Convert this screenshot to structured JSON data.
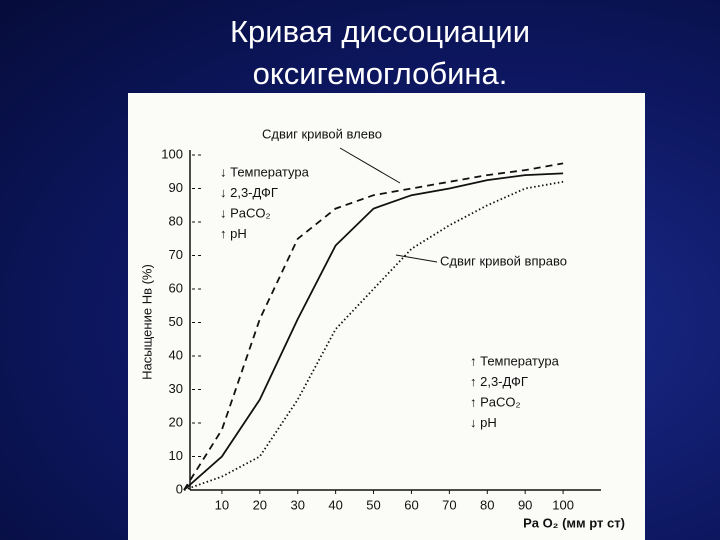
{
  "slide_title": [
    "Кривая диссоциации",
    "оксигемоглобина."
  ],
  "chart_data": {
    "type": "line",
    "ylabel": "Насыщение Нв (%)",
    "xlabel": "Pa O₂ (мм рт ст)",
    "x": [
      0,
      10,
      20,
      30,
      40,
      50,
      60,
      70,
      80,
      90,
      100
    ],
    "series": [
      {
        "name": "Сдвиг кривой влево",
        "color": "#111111",
        "style": "dashed",
        "values": [
          0,
          18,
          51,
          75,
          84,
          88,
          90,
          92,
          94,
          95.5,
          97.5
        ]
      },
      {
        "color": "#111111",
        "style": "solid",
        "values": [
          0,
          10,
          27,
          51,
          73,
          84,
          88,
          90,
          92.5,
          94,
          94.5
        ]
      },
      {
        "name": "Сдвиг кривой вправо",
        "color": "#111111",
        "style": "dotted",
        "values": [
          0,
          4,
          10,
          27,
          48,
          60,
          72,
          79,
          85,
          90,
          92
        ]
      }
    ],
    "xlim": [
      0,
      110
    ],
    "ylim": [
      0,
      100
    ],
    "xticks": [
      10,
      20,
      30,
      40,
      50,
      60,
      70,
      80,
      90,
      100
    ],
    "yticks": [
      0,
      10,
      20,
      30,
      40,
      50,
      60,
      70,
      80,
      90,
      100
    ],
    "left_factors": [
      "↓ Температура",
      "↓ 2,3-ДФГ",
      "↓ PaCO₂",
      "↑ pH"
    ],
    "right_factors": [
      "↑ Температура",
      "↑ 2,3-ДФГ",
      "↑ PaCO₂",
      "↓ pH"
    ]
  }
}
